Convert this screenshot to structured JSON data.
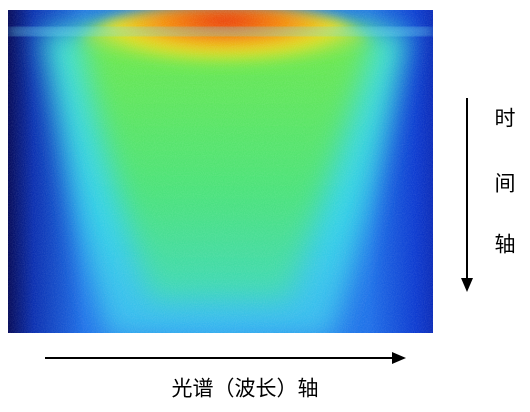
{
  "labels": {
    "time_axis": [
      "时",
      "间",
      "轴"
    ],
    "spectrum_axis": "光谱（波长）轴"
  }
}
